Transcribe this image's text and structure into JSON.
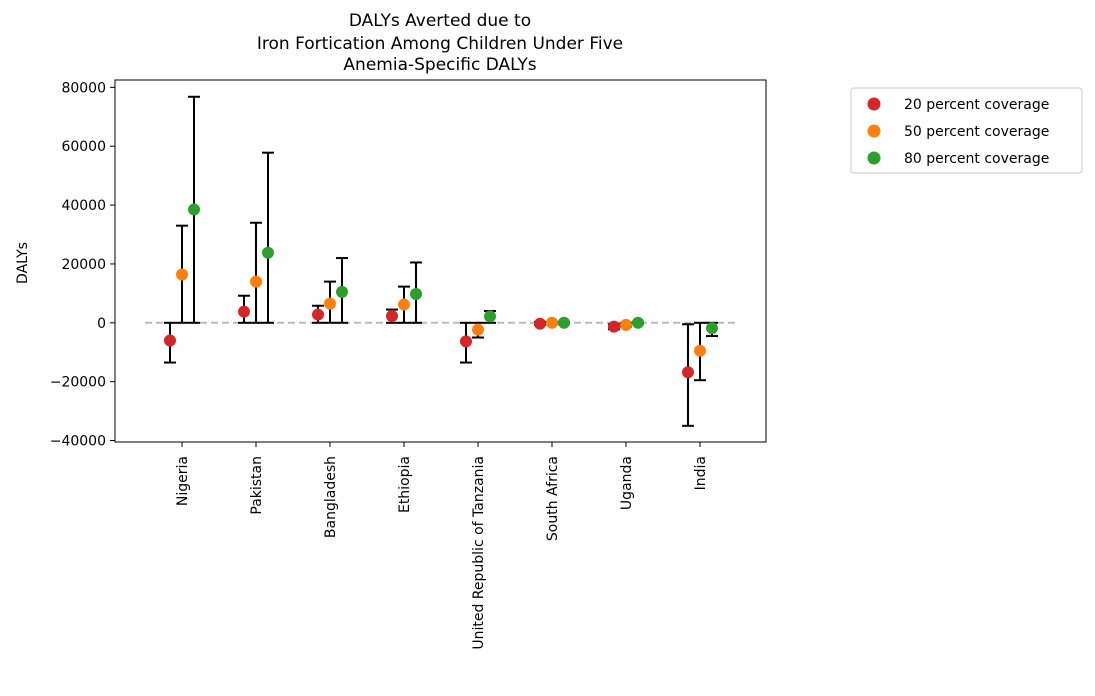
{
  "chart_data": {
    "type": "scatter",
    "title": [
      "DALYs Averted due to",
      "Iron Fortication Among Children Under Five",
      "Anemia-Specific DALYs"
    ],
    "xlabel": "",
    "ylabel": "DALYs",
    "ylim": [
      -40500,
      82500
    ],
    "yticks": [
      -40000,
      -20000,
      0,
      20000,
      40000,
      60000,
      80000
    ],
    "ytick_labels": [
      "−40000",
      "−20000",
      "0",
      "20000",
      "40000",
      "60000",
      "80000"
    ],
    "categories": [
      "Nigeria",
      "Pakistan",
      "Bangladesh",
      "Ethiopia",
      "United Republic of Tanzania",
      "South Africa",
      "Uganda",
      "India"
    ],
    "reference_line": {
      "y": 0,
      "style": "dashed",
      "color": "#bbbbbb"
    },
    "legend_position": "outside-top-right",
    "series": [
      {
        "name": "20 percent coverage",
        "color": "#d62728",
        "values": [
          -6000,
          3800,
          2800,
          2300,
          -6300,
          -300,
          -1300,
          -16800
        ],
        "lower": [
          -13500,
          0,
          0,
          0,
          -13500,
          -700,
          -2200,
          -35000
        ],
        "upper": [
          0,
          9200,
          5800,
          4500,
          0,
          300,
          -500,
          -500
        ]
      },
      {
        "name": "50 percent coverage",
        "color": "#ff7f0e",
        "values": [
          16400,
          14000,
          6500,
          6200,
          -2300,
          0,
          -700,
          -9500
        ],
        "lower": [
          0,
          0,
          0,
          0,
          -5000,
          -300,
          -1300,
          -19500
        ],
        "upper": [
          33000,
          34000,
          14000,
          12300,
          0,
          300,
          0,
          0
        ]
      },
      {
        "name": "80 percent coverage",
        "color": "#2ca02c",
        "values": [
          38500,
          23800,
          10500,
          9800,
          2200,
          0,
          0,
          -1800
        ],
        "lower": [
          0,
          0,
          0,
          0,
          0,
          -300,
          -300,
          -4500
        ],
        "upper": [
          76800,
          57800,
          22000,
          20500,
          4000,
          300,
          300,
          0
        ]
      }
    ]
  }
}
